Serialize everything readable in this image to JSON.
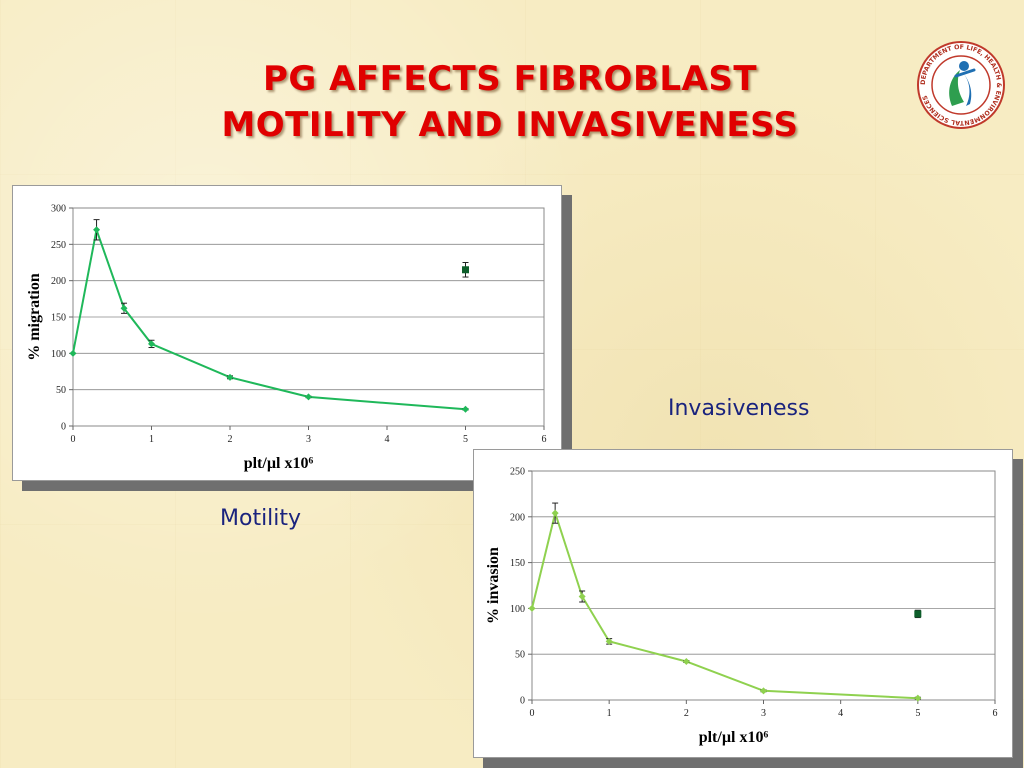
{
  "slide": {
    "title_line1": "PG AFFECTS FIBROBLAST",
    "title_line2": "MOTILITY AND INVASIVENESS",
    "label_motility": "Motility",
    "label_invasiveness": "Invasiveness",
    "logo_text": "DEPARTMENT OF LIFE, HEALTH & ENVIRONMENTAL SCIENCES"
  },
  "colors": {
    "title": "#e00000",
    "label": "#1a237e",
    "motility_line": "#1fb85a",
    "invasion_line": "#8fd14f",
    "control_point": "#0d5e2a"
  },
  "chart_data": [
    {
      "type": "line",
      "xlabel": "plt/µl x10⁶",
      "ylabel": "% migration",
      "xlim": [
        0,
        6
      ],
      "ylim": [
        0,
        300
      ],
      "xticks": [
        0,
        1,
        2,
        3,
        4,
        5,
        6
      ],
      "yticks": [
        0,
        50,
        100,
        150,
        200,
        250,
        300
      ],
      "grid": "horizontal",
      "series": [
        {
          "x": [
            0,
            0.3,
            0.65,
            1,
            2,
            3,
            5
          ],
          "y": [
            100,
            270,
            162,
            113,
            67,
            40,
            23
          ],
          "err": [
            0,
            14,
            7,
            5,
            2,
            1,
            1
          ],
          "color": "#1fb85a"
        },
        {
          "x": [
            5
          ],
          "y": [
            215
          ],
          "err": [
            10
          ],
          "color": "#0d5e2a",
          "marker": "square"
        }
      ]
    },
    {
      "type": "line",
      "xlabel": "plt/µl x10⁶",
      "ylabel": "% invasion",
      "xlim": [
        0,
        6
      ],
      "ylim": [
        0,
        250
      ],
      "xticks": [
        0,
        1,
        2,
        3,
        4,
        5,
        6
      ],
      "yticks": [
        0,
        50,
        100,
        150,
        200,
        250
      ],
      "grid": "horizontal",
      "series": [
        {
          "x": [
            0,
            0.3,
            0.65,
            1,
            2,
            3,
            5
          ],
          "y": [
            100,
            204,
            113,
            64,
            42,
            10,
            2
          ],
          "err": [
            0,
            11,
            6,
            3,
            1,
            1,
            1
          ],
          "color": "#8fd14f"
        },
        {
          "x": [
            5
          ],
          "y": [
            94
          ],
          "err": [
            4
          ],
          "color": "#0d5e2a",
          "marker": "square"
        }
      ]
    }
  ]
}
